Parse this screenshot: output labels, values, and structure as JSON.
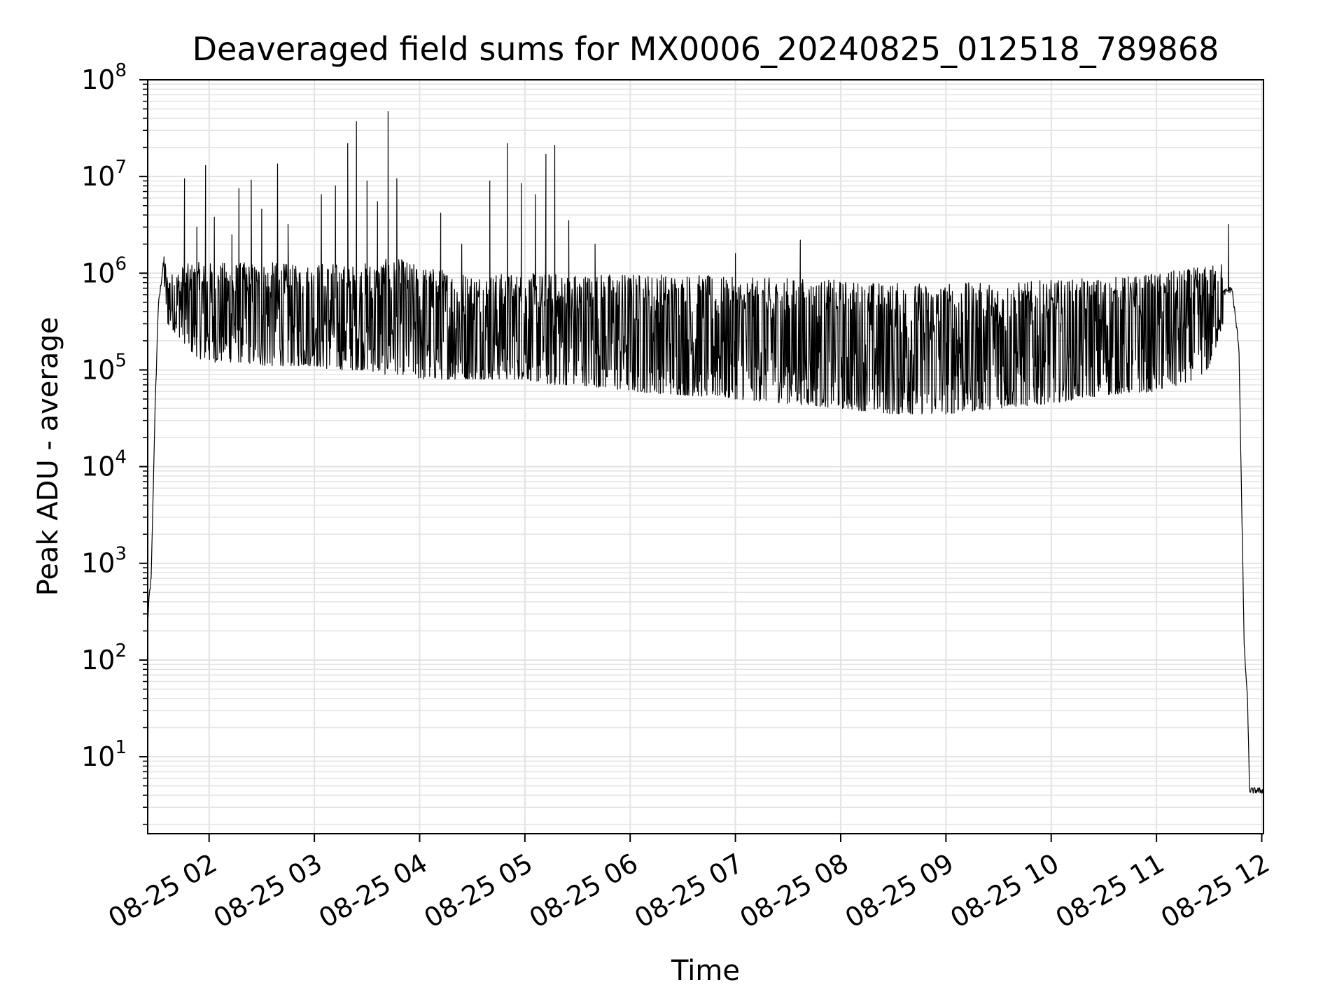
{
  "chart_data": {
    "type": "line",
    "title": "Deaveraged field sums for MX0006_20240825_012518_789868",
    "xlabel": "Time",
    "ylabel": "Peak ADU - average",
    "yscale": "log",
    "ylim": [
      1.6,
      100000000
    ],
    "xlim": [
      "08-25 01:25",
      "08-25 12:01"
    ],
    "grid": "major and minor, light gray",
    "line_color": "#000000",
    "x_ticks": [
      "08-25 02",
      "08-25 03",
      "08-25 04",
      "08-25 05",
      "08-25 06",
      "08-25 07",
      "08-25 08",
      "08-25 09",
      "08-25 10",
      "08-25 11",
      "08-25 12"
    ],
    "y_ticks": [
      {
        "base": "10",
        "exp": "1",
        "value": 10
      },
      {
        "base": "10",
        "exp": "2",
        "value": 100
      },
      {
        "base": "10",
        "exp": "3",
        "value": 1000
      },
      {
        "base": "10",
        "exp": "4",
        "value": 10000
      },
      {
        "base": "10",
        "exp": "5",
        "value": 100000
      },
      {
        "base": "10",
        "exp": "6",
        "value": 1000000
      },
      {
        "base": "10",
        "exp": "7",
        "value": 10000000
      },
      {
        "base": "10",
        "exp": "8",
        "value": 100000000
      }
    ],
    "series": [
      {
        "x": [
          "08-25 01:25",
          "08-25 01:26",
          "08-25 01:27",
          "08-25 01:29",
          "08-25 01:31",
          "08-25 01:34",
          "08-25 01:36",
          "08-25 01:40",
          "08-25 01:45",
          "08-25 01:50",
          "08-25 01:55",
          "08-25 02:00",
          "08-25 02:10",
          "08-25 02:20",
          "08-25 02:30",
          "08-25 02:40",
          "08-25 02:50",
          "08-25 03:00",
          "08-25 03:10",
          "08-25 03:20",
          "08-25 03:30",
          "08-25 03:40",
          "08-25 03:50",
          "08-25 04:00",
          "08-25 04:15",
          "08-25 04:30",
          "08-25 04:45",
          "08-25 05:00",
          "08-25 05:15",
          "08-25 05:30",
          "08-25 05:45",
          "08-25 06:00",
          "08-25 06:30",
          "08-25 07:00",
          "08-25 07:30",
          "08-25 08:00",
          "08-25 08:30",
          "08-25 09:00",
          "08-25 09:30",
          "08-25 10:00",
          "08-25 10:30",
          "08-25 11:00",
          "08-25 11:15",
          "08-25 11:30",
          "08-25 11:38",
          "08-25 11:43",
          "08-25 11:47",
          "08-25 11:50",
          "08-25 11:52",
          "08-25 11:53",
          "08-25 11:55",
          "08-25 12:00"
        ],
        "lo": [
          200,
          400,
          600,
          10000,
          200000,
          900000,
          300000,
          250000,
          200000,
          150000,
          130000,
          120000,
          120000,
          120000,
          110000,
          110000,
          110000,
          110000,
          100000,
          100000,
          100000,
          90000,
          90000,
          80000,
          80000,
          80000,
          80000,
          80000,
          70000,
          70000,
          65000,
          60000,
          55000,
          50000,
          45000,
          40000,
          35000,
          35000,
          40000,
          45000,
          55000,
          60000,
          70000,
          100000,
          300000,
          400000,
          100000,
          100,
          30,
          4,
          4,
          4
        ],
        "hi": [
          300,
          600,
          800,
          80000,
          1000000,
          1800000,
          1000000,
          1000000,
          1200000,
          1300000,
          1300000,
          1300000,
          1300000,
          1300000,
          1300000,
          1300000,
          1200000,
          1300000,
          1300000,
          1200000,
          1300000,
          1400000,
          1400000,
          1200000,
          1100000,
          1000000,
          1000000,
          1000000,
          1000000,
          1000000,
          1000000,
          1000000,
          1000000,
          900000,
          900000,
          850000,
          800000,
          800000,
          800000,
          850000,
          900000,
          1000000,
          1100000,
          1200000,
          1300000,
          1200000,
          300000,
          200,
          40,
          5,
          5,
          5
        ],
        "spikes": [
          {
            "x": "08-25 01:46",
            "y": 9500000
          },
          {
            "x": "08-25 01:53",
            "y": 3000000
          },
          {
            "x": "08-25 01:58",
            "y": 13000000
          },
          {
            "x": "08-25 02:03",
            "y": 3800000
          },
          {
            "x": "08-25 02:13",
            "y": 2500000
          },
          {
            "x": "08-25 02:17",
            "y": 7500000
          },
          {
            "x": "08-25 02:24",
            "y": 9200000
          },
          {
            "x": "08-25 02:30",
            "y": 4600000
          },
          {
            "x": "08-25 02:39",
            "y": 13500000
          },
          {
            "x": "08-25 02:45",
            "y": 3200000
          },
          {
            "x": "08-25 03:04",
            "y": 6500000
          },
          {
            "x": "08-25 03:12",
            "y": 8000000
          },
          {
            "x": "08-25 03:19",
            "y": 22000000
          },
          {
            "x": "08-25 03:24",
            "y": 37000000
          },
          {
            "x": "08-25 03:30",
            "y": 9000000
          },
          {
            "x": "08-25 03:36",
            "y": 5500000
          },
          {
            "x": "08-25 03:42",
            "y": 47000000
          },
          {
            "x": "08-25 03:47",
            "y": 9500000
          },
          {
            "x": "08-25 04:12",
            "y": 4200000
          },
          {
            "x": "08-25 04:24",
            "y": 2000000
          },
          {
            "x": "08-25 04:40",
            "y": 9000000
          },
          {
            "x": "08-25 04:50",
            "y": 22000000
          },
          {
            "x": "08-25 04:58",
            "y": 8500000
          },
          {
            "x": "08-25 05:06",
            "y": 6500000
          },
          {
            "x": "08-25 05:12",
            "y": 17000000
          },
          {
            "x": "08-25 05:17",
            "y": 21000000
          },
          {
            "x": "08-25 05:25",
            "y": 3500000
          },
          {
            "x": "08-25 05:40",
            "y": 2000000
          },
          {
            "x": "08-25 07:00",
            "y": 1600000
          },
          {
            "x": "08-25 07:37",
            "y": 2200000
          },
          {
            "x": "08-25 11:41",
            "y": 3200000
          }
        ]
      }
    ]
  }
}
